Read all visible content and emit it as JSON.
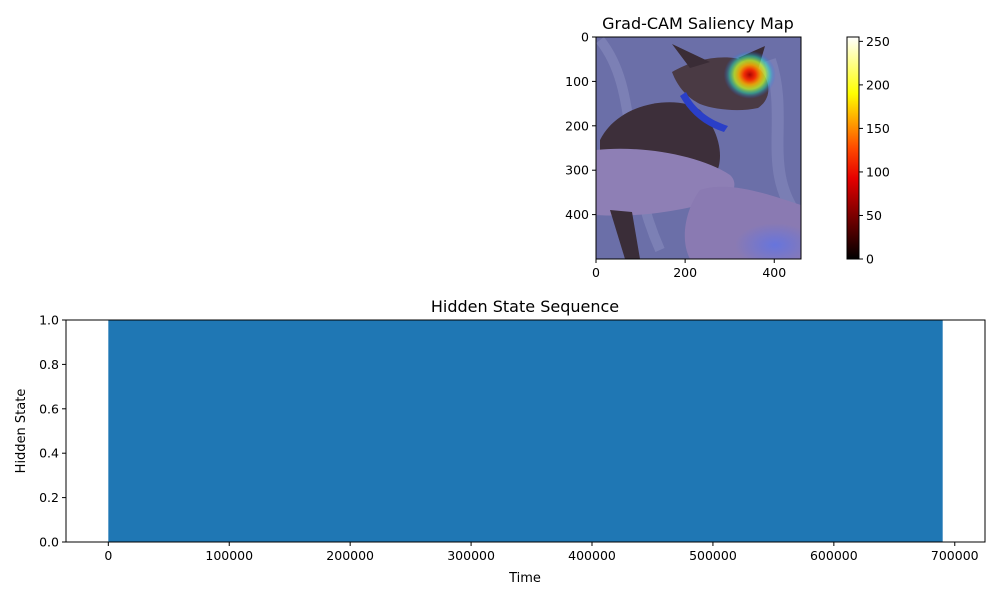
{
  "chart_data": [
    {
      "type": "heatmap",
      "title": "Grad-CAM Saliency Map",
      "xlabel": "",
      "ylabel": "",
      "xlim": [
        0,
        460
      ],
      "ylim": [
        500,
        0
      ],
      "x_ticks": [
        "0",
        "200",
        "400"
      ],
      "y_ticks": [
        "0",
        "100",
        "200",
        "300",
        "400"
      ],
      "colorbar": {
        "colormap": "hot",
        "range": [
          0,
          255
        ],
        "ticks": [
          "0",
          "50",
          "100",
          "150",
          "200",
          "250"
        ]
      },
      "overlay_colormap": "jet",
      "hotspot": {
        "x": 345,
        "y": 85,
        "peak": 255
      },
      "image_content": "dog held in hands"
    },
    {
      "type": "area",
      "title": "Hidden State Sequence",
      "xlabel": "Time",
      "ylabel": "Hidden State",
      "x": [
        0,
        690000
      ],
      "values": [
        1,
        1
      ],
      "xlim": [
        -35000,
        725000
      ],
      "ylim": [
        0,
        1
      ],
      "x_ticks": [
        "0",
        "100000",
        "200000",
        "300000",
        "400000",
        "500000",
        "600000",
        "700000"
      ],
      "y_ticks": [
        "0.0",
        "0.2",
        "0.4",
        "0.6",
        "0.8",
        "1.0"
      ],
      "color": "#1f77b4",
      "grid": false
    }
  ]
}
